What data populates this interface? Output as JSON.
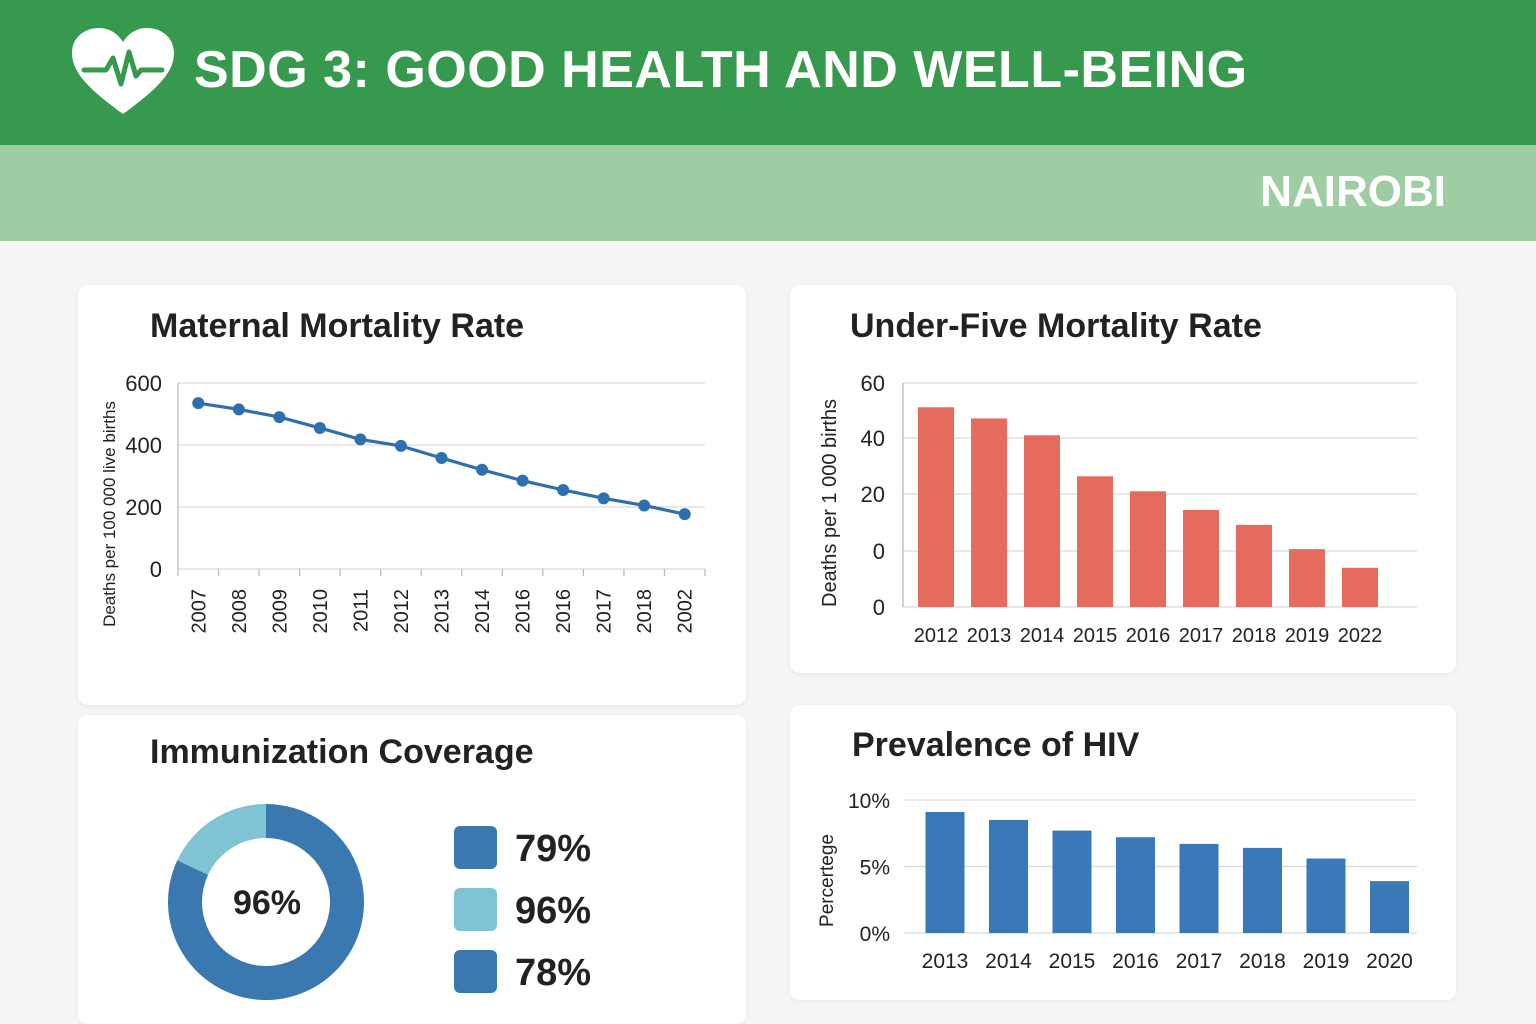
{
  "header": {
    "title": "SDG 3: GOOD HEALTH AND WELL-BEING",
    "icon": "heart-pulse-icon",
    "subtitle": "NAIROBI"
  },
  "colors": {
    "header_bg": "#36994d",
    "subheader_bg": "#9ecda3",
    "line_series": "#2e6fad",
    "bar_red": "#e56b5f",
    "bar_blue": "#3a78b8",
    "donut_dark": "#3a78b0",
    "donut_light": "#80c3d4"
  },
  "chart_data": [
    {
      "id": "maternal",
      "type": "line",
      "title": "Maternal Mortality Rate",
      "xlabel": "",
      "ylabel": "Deaths per 100 000 live births",
      "categories": [
        "2007",
        "2008",
        "2009",
        "2010",
        "2011",
        "2012",
        "2013",
        "2014",
        "2016",
        "2016",
        "2017",
        "2018",
        "2002"
      ],
      "series": [
        {
          "values": [
            535,
            515,
            490,
            455,
            418,
            397,
            358,
            320,
            285,
            255,
            228,
            205,
            177
          ]
        }
      ],
      "ylim": [
        0,
        600
      ],
      "yticks": [
        "0",
        "200",
        "400",
        "600"
      ],
      "grid": true
    },
    {
      "id": "underfive",
      "type": "bar",
      "title": "Under-Five Mortality Rate",
      "xlabel": "",
      "ylabel": "Deaths per 1 000 births",
      "categories": [
        "2012",
        "2013",
        "2014",
        "2015",
        "2016",
        "2017",
        "2018",
        "2019",
        "2022"
      ],
      "values": [
        53.5,
        50.5,
        46,
        35,
        31,
        26,
        22,
        15.5,
        10.5
      ],
      "ylim": [
        0,
        60
      ],
      "yticks": [
        "0",
        "0",
        "20",
        "40",
        "60"
      ],
      "grid": true
    },
    {
      "id": "immunization",
      "type": "pie",
      "title": "Immunization Coverage",
      "center_label": "96%",
      "slices": [
        {
          "value": 82,
          "color": "#3a78b0"
        },
        {
          "value": 18,
          "color": "#80c3d4"
        }
      ],
      "legend": [
        {
          "label": "79%",
          "color": "#3a78b0"
        },
        {
          "label": "96%",
          "color": "#80c3d4"
        },
        {
          "label": "78%",
          "color": "#3a78b0"
        }
      ]
    },
    {
      "id": "hiv",
      "type": "bar",
      "title": "Prevalence of HIV",
      "xlabel": "",
      "ylabel": "Percertege",
      "categories": [
        "2013",
        "2014",
        "2015",
        "2016",
        "2017",
        "2018",
        "2019",
        "2020"
      ],
      "values": [
        9.1,
        8.5,
        7.7,
        7.2,
        6.7,
        6.4,
        5.6,
        3.9
      ],
      "ylim": [
        0,
        10
      ],
      "yticks": [
        "0%",
        "5%",
        "10%"
      ],
      "grid": true
    }
  ]
}
